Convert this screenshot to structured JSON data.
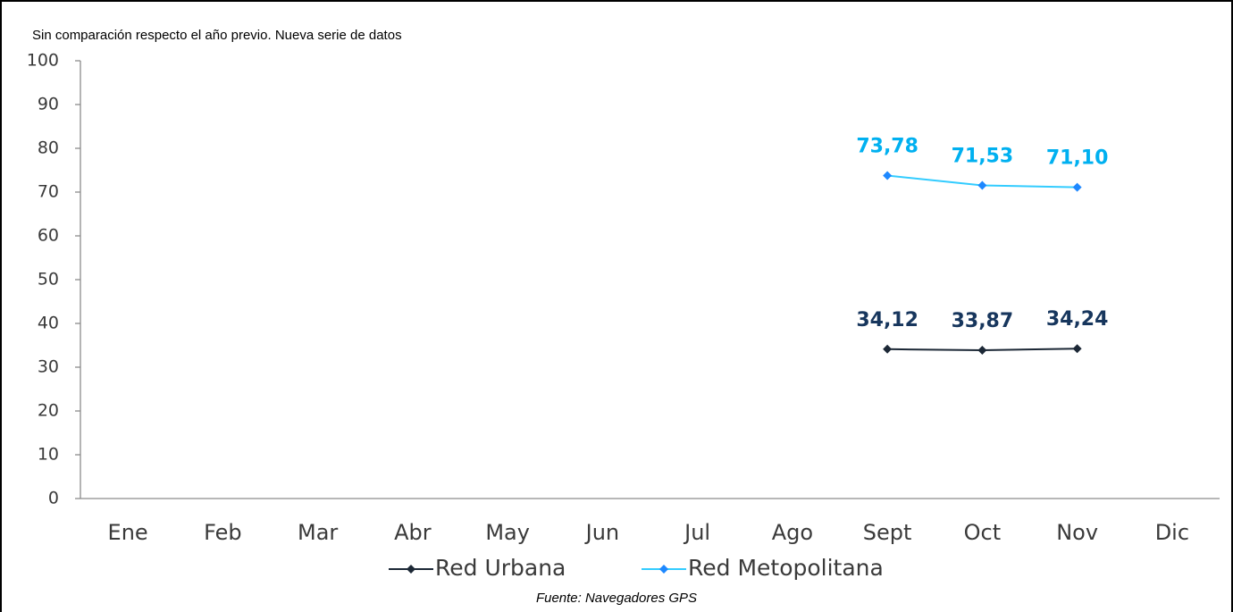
{
  "chart_data": {
    "type": "line",
    "annotation": "Sin comparación respecto el año previo. Nueva serie de datos",
    "source": "Fuente: Navegadores GPS",
    "categories": [
      "Ene",
      "Feb",
      "Mar",
      "Abr",
      "May",
      "Jun",
      "Jul",
      "Ago",
      "Sept",
      "Oct",
      "Nov",
      "Dic"
    ],
    "series": [
      {
        "name": "Red Urbana",
        "color": "#1c2836",
        "marker_color": "#1c2836",
        "label_color": "#17365d",
        "values": [
          null,
          null,
          null,
          null,
          null,
          null,
          null,
          null,
          34.12,
          33.87,
          34.24,
          null
        ],
        "value_labels": [
          null,
          null,
          null,
          null,
          null,
          null,
          null,
          null,
          "34,12",
          "33,87",
          "34,24",
          null
        ]
      },
      {
        "name": "Red Metopolitana",
        "color": "#33ccff",
        "marker_color": "#1e88ff",
        "label_color": "#00b0f0",
        "values": [
          null,
          null,
          null,
          null,
          null,
          null,
          null,
          null,
          73.78,
          71.53,
          71.1,
          null
        ],
        "value_labels": [
          null,
          null,
          null,
          null,
          null,
          null,
          null,
          null,
          "73,78",
          "71,53",
          "71,10",
          null
        ]
      }
    ],
    "ylim": [
      0,
      100
    ],
    "yticks": [
      0,
      10,
      20,
      30,
      40,
      50,
      60,
      70,
      80,
      90,
      100
    ]
  }
}
